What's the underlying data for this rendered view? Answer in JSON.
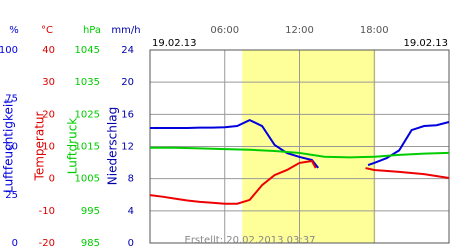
{
  "chart_data": {
    "type": "line",
    "date_left": "19.02.13",
    "date_right": "19.02.13",
    "footer": "Erstellt: 20.02.2013 03:37",
    "xlim": [
      0,
      24
    ],
    "xticks": [
      {
        "value": 6,
        "label": "06:00"
      },
      {
        "value": 12,
        "label": "12:00"
      },
      {
        "value": 18,
        "label": "18:00"
      }
    ],
    "daylight": [
      7.4,
      18.1
    ],
    "grid": true,
    "axes": [
      {
        "unit": "%",
        "label": "Luftfeuchtigkeit",
        "color": "#0000dd",
        "ylim": [
          0,
          100
        ],
        "yticks": [
          0,
          25,
          50,
          75,
          100
        ]
      },
      {
        "unit": "°C",
        "label": "Temperatur",
        "color": "#dd0000",
        "ylim": [
          -20,
          40
        ],
        "yticks": [
          -20,
          -10,
          0,
          10,
          20,
          30,
          40
        ]
      },
      {
        "unit": "hPa",
        "label": "Luftdruck",
        "color": "#00cc00",
        "ylim": [
          985,
          1045
        ],
        "yticks": [
          985,
          995,
          1005,
          1015,
          1025,
          1035,
          1045
        ]
      },
      {
        "unit": "mm/h",
        "label": "Niederschlag",
        "color": "#0000aa",
        "ylim": [
          0,
          24
        ],
        "yticks": [
          0,
          4,
          8,
          12,
          16,
          20,
          24
        ]
      }
    ],
    "series": [
      {
        "name": "Luftfeuchtigkeit",
        "axis": 0,
        "color": "#0000dd",
        "x": [
          0,
          1,
          2,
          3,
          4,
          5,
          6,
          7,
          8,
          9,
          10,
          11,
          12,
          13,
          13.5,
          14,
          17.5,
          18,
          19,
          20,
          21,
          22,
          23,
          24
        ],
        "values": [
          59.6,
          59.6,
          59.6,
          59.6,
          59.8,
          59.8,
          60,
          60.6,
          63.7,
          60.6,
          50.8,
          46.6,
          44.6,
          43,
          38.9,
          null,
          40.4,
          41.5,
          44,
          48,
          58.5,
          60.6,
          61,
          62.7
        ]
      },
      {
        "name": "Temperatur",
        "axis": 1,
        "color": "#ee0000",
        "x": [
          0,
          1,
          2,
          3,
          4,
          5,
          6,
          7,
          8,
          9,
          10,
          11,
          12,
          13,
          13.3,
          14,
          17.3,
          18,
          20,
          22,
          24
        ],
        "values": [
          -5.1,
          -5.6,
          -6.2,
          -6.8,
          -7.2,
          -7.5,
          -7.8,
          -7.8,
          -6.6,
          -2,
          1.1,
          2.7,
          4.9,
          5.5,
          3.3,
          null,
          3.3,
          2.7,
          2.1,
          1.4,
          0.2
        ]
      },
      {
        "name": "Luftdruck",
        "axis": 2,
        "color": "#00cc00",
        "x": [
          0,
          2,
          4,
          6,
          8,
          10,
          12,
          13,
          14,
          16,
          18,
          20,
          22,
          24
        ],
        "values": [
          1014.6,
          1014.6,
          1014.4,
          1014.2,
          1014,
          1013.6,
          1013,
          1012.4,
          1011.8,
          1011.6,
          1011.8,
          1012.4,
          1012.8,
          1013
        ]
      }
    ]
  }
}
